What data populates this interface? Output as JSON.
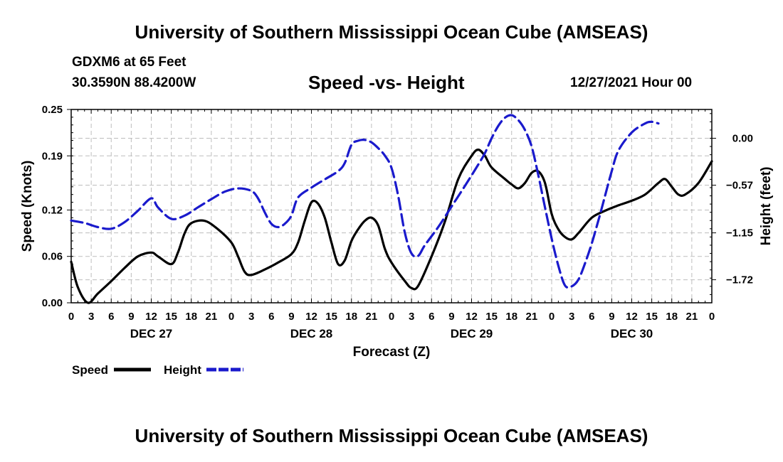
{
  "header": {
    "title": "University of Southern Mississippi Ocean Cube (AMSEAS)",
    "station": "GDXM6 at 65 Feet",
    "coordinates": "30.3590N  88.4200W",
    "subtitle": "Speed -vs- Height",
    "datetime": "12/27/2021 Hour 00"
  },
  "footer": {
    "title": "University of Southern Mississippi Ocean Cube (AMSEAS)"
  },
  "chart_data": {
    "type": "line",
    "title": "Speed -vs- Height",
    "xlabel": "Forecast (Z)",
    "ylabel_left": "Speed (Knots)",
    "ylabel_right": "Height (feet)",
    "x_range_hours": [
      0,
      96
    ],
    "x_ticks": [
      {
        "hour": 0,
        "label": "0"
      },
      {
        "hour": 3,
        "label": "3"
      },
      {
        "hour": 6,
        "label": "6"
      },
      {
        "hour": 9,
        "label": "9"
      },
      {
        "hour": 12,
        "label": "12"
      },
      {
        "hour": 15,
        "label": "15"
      },
      {
        "hour": 18,
        "label": "18"
      },
      {
        "hour": 21,
        "label": "21"
      },
      {
        "hour": 24,
        "label": "0"
      },
      {
        "hour": 27,
        "label": "3"
      },
      {
        "hour": 30,
        "label": "6"
      },
      {
        "hour": 33,
        "label": "9"
      },
      {
        "hour": 36,
        "label": "12"
      },
      {
        "hour": 39,
        "label": "15"
      },
      {
        "hour": 42,
        "label": "18"
      },
      {
        "hour": 45,
        "label": "21"
      },
      {
        "hour": 48,
        "label": "0"
      },
      {
        "hour": 51,
        "label": "3"
      },
      {
        "hour": 54,
        "label": "6"
      },
      {
        "hour": 57,
        "label": "9"
      },
      {
        "hour": 60,
        "label": "12"
      },
      {
        "hour": 63,
        "label": "15"
      },
      {
        "hour": 66,
        "label": "18"
      },
      {
        "hour": 69,
        "label": "21"
      },
      {
        "hour": 72,
        "label": "0"
      },
      {
        "hour": 75,
        "label": "3"
      },
      {
        "hour": 78,
        "label": "6"
      },
      {
        "hour": 81,
        "label": "9"
      },
      {
        "hour": 84,
        "label": "12"
      },
      {
        "hour": 87,
        "label": "15"
      },
      {
        "hour": 90,
        "label": "18"
      },
      {
        "hour": 93,
        "label": "21"
      },
      {
        "hour": 96,
        "label": "0"
      }
    ],
    "day_labels": [
      {
        "hour": 12,
        "label": "DEC 27"
      },
      {
        "hour": 36,
        "label": "DEC 28"
      },
      {
        "hour": 60,
        "label": "DEC 29"
      },
      {
        "hour": 84,
        "label": "DEC 30"
      }
    ],
    "y_left": {
      "min": 0.0,
      "max": 0.25,
      "ticks": [
        0.0,
        0.06,
        0.12,
        0.19,
        0.25
      ],
      "tick_labels": [
        "0.00",
        "0.06",
        "0.12",
        "0.19",
        "0.25"
      ]
    },
    "y_right": {
      "min": -2.0,
      "max": 0.35,
      "ticks": [
        0.0,
        -0.57,
        -1.15,
        -1.72
      ],
      "tick_labels": [
        "0.00",
        "−0.57",
        "−1.15",
        "−1.72"
      ]
    },
    "legend": [
      {
        "name": "Speed",
        "color": "#000000",
        "dash": "solid"
      },
      {
        "name": "Height",
        "color": "#1a1acc",
        "dash": "dashed"
      }
    ],
    "series": [
      {
        "name": "Speed",
        "axis": "left",
        "color": "#000000",
        "points": [
          [
            0,
            0.053
          ],
          [
            1,
            0.02
          ],
          [
            2.5,
            0.0
          ],
          [
            4,
            0.012
          ],
          [
            6,
            0.028
          ],
          [
            8,
            0.045
          ],
          [
            10,
            0.06
          ],
          [
            12,
            0.065
          ],
          [
            13,
            0.06
          ],
          [
            15,
            0.05
          ],
          [
            16,
            0.065
          ],
          [
            17,
            0.09
          ],
          [
            18,
            0.103
          ],
          [
            20,
            0.106
          ],
          [
            22,
            0.095
          ],
          [
            24,
            0.078
          ],
          [
            25,
            0.06
          ],
          [
            26,
            0.04
          ],
          [
            27,
            0.036
          ],
          [
            29,
            0.043
          ],
          [
            31,
            0.052
          ],
          [
            33,
            0.063
          ],
          [
            34,
            0.078
          ],
          [
            35,
            0.106
          ],
          [
            36,
            0.13
          ],
          [
            37,
            0.128
          ],
          [
            38,
            0.11
          ],
          [
            39,
            0.078
          ],
          [
            40,
            0.05
          ],
          [
            41,
            0.055
          ],
          [
            42,
            0.08
          ],
          [
            43,
            0.095
          ],
          [
            44,
            0.106
          ],
          [
            45,
            0.11
          ],
          [
            46,
            0.1
          ],
          [
            47,
            0.07
          ],
          [
            48,
            0.052
          ],
          [
            50,
            0.028
          ],
          [
            51,
            0.019
          ],
          [
            52,
            0.022
          ],
          [
            54,
            0.06
          ],
          [
            56,
            0.105
          ],
          [
            58,
            0.16
          ],
          [
            60,
            0.19
          ],
          [
            61,
            0.198
          ],
          [
            62,
            0.19
          ],
          [
            63,
            0.175
          ],
          [
            65,
            0.16
          ],
          [
            66,
            0.153
          ],
          [
            67,
            0.148
          ],
          [
            68,
            0.155
          ],
          [
            69,
            0.168
          ],
          [
            70,
            0.17
          ],
          [
            71,
            0.155
          ],
          [
            72,
            0.115
          ],
          [
            73,
            0.095
          ],
          [
            74,
            0.085
          ],
          [
            75,
            0.082
          ],
          [
            76,
            0.09
          ],
          [
            78,
            0.11
          ],
          [
            80,
            0.119
          ],
          [
            82,
            0.126
          ],
          [
            84,
            0.132
          ],
          [
            86,
            0.14
          ],
          [
            88,
            0.155
          ],
          [
            89,
            0.16
          ],
          [
            90,
            0.15
          ],
          [
            91,
            0.14
          ],
          [
            92,
            0.14
          ],
          [
            94,
            0.155
          ],
          [
            96,
            0.183
          ]
        ]
      },
      {
        "name": "Height",
        "axis": "right",
        "color": "#1a1acc",
        "points": [
          [
            0,
            -1.0
          ],
          [
            2,
            -1.03
          ],
          [
            4,
            -1.08
          ],
          [
            6,
            -1.1
          ],
          [
            8,
            -1.02
          ],
          [
            10,
            -0.88
          ],
          [
            12,
            -0.73
          ],
          [
            13,
            -0.84
          ],
          [
            15,
            -0.98
          ],
          [
            17,
            -0.94
          ],
          [
            19,
            -0.84
          ],
          [
            21,
            -0.74
          ],
          [
            23,
            -0.65
          ],
          [
            25,
            -0.61
          ],
          [
            27,
            -0.64
          ],
          [
            28,
            -0.73
          ],
          [
            29,
            -0.9
          ],
          [
            30,
            -1.04
          ],
          [
            31,
            -1.08
          ],
          [
            32,
            -1.04
          ],
          [
            33,
            -0.94
          ],
          [
            34,
            -0.72
          ],
          [
            36,
            -0.6
          ],
          [
            38,
            -0.5
          ],
          [
            40,
            -0.4
          ],
          [
            41,
            -0.3
          ],
          [
            42,
            -0.08
          ],
          [
            43,
            -0.03
          ],
          [
            44,
            -0.02
          ],
          [
            45,
            -0.05
          ],
          [
            46,
            -0.12
          ],
          [
            47,
            -0.21
          ],
          [
            48,
            -0.36
          ],
          [
            49,
            -0.7
          ],
          [
            50,
            -1.15
          ],
          [
            51,
            -1.4
          ],
          [
            52,
            -1.43
          ],
          [
            53,
            -1.3
          ],
          [
            55,
            -1.08
          ],
          [
            57,
            -0.83
          ],
          [
            59,
            -0.58
          ],
          [
            61,
            -0.32
          ],
          [
            62,
            -0.18
          ],
          [
            63,
            0.0
          ],
          [
            64,
            0.15
          ],
          [
            65,
            0.25
          ],
          [
            66,
            0.28
          ],
          [
            67,
            0.22
          ],
          [
            68,
            0.1
          ],
          [
            69,
            -0.1
          ],
          [
            70,
            -0.45
          ],
          [
            71,
            -0.84
          ],
          [
            72,
            -1.22
          ],
          [
            73,
            -1.55
          ],
          [
            74,
            -1.79
          ],
          [
            75,
            -1.8
          ],
          [
            76,
            -1.72
          ],
          [
            77,
            -1.52
          ],
          [
            78,
            -1.28
          ],
          [
            79,
            -1.0
          ],
          [
            80,
            -0.7
          ],
          [
            81,
            -0.4
          ],
          [
            82,
            -0.15
          ],
          [
            84,
            0.07
          ],
          [
            86,
            0.18
          ],
          [
            87,
            0.2
          ],
          [
            88,
            0.18
          ]
        ]
      }
    ]
  }
}
